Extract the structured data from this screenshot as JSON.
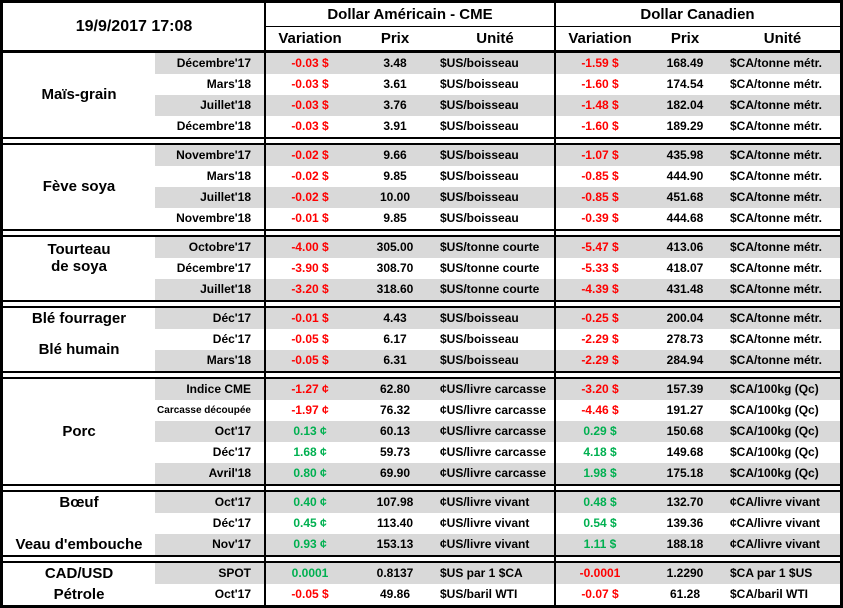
{
  "header": {
    "timestamp": "19/9/2017 17:08",
    "sections": [
      {
        "title": "Dollar Américain - CME",
        "columns": [
          "Variation",
          "Prix",
          "Unité"
        ]
      },
      {
        "title": "Dollar Canadien",
        "columns": [
          "Variation",
          "Prix",
          "Unité"
        ]
      }
    ]
  },
  "colors": {
    "negative": "#FF0000",
    "positive": "#00B050",
    "stripe": "#D9D9D9",
    "border": "#000000"
  },
  "chart_data": {
    "type": "table",
    "row_schema": [
      "month",
      "us_variation",
      "us_price",
      "us_unit",
      "ca_variation",
      "ca_price",
      "ca_unit"
    ],
    "groups": [
      {
        "labels": [
          {
            "lines": [
              "Maïs-grain"
            ],
            "row_start": 1,
            "row_end": 4
          }
        ],
        "rows": [
          [
            "Décembre'17",
            "-0.03 $",
            "3.48",
            "$US/boisseau",
            "-1.59 $",
            "168.49",
            "$CA/tonne métr."
          ],
          [
            "Mars'18",
            "-0.03 $",
            "3.61",
            "$US/boisseau",
            "-1.60 $",
            "174.54",
            "$CA/tonne métr."
          ],
          [
            "Juillet'18",
            "-0.03 $",
            "3.76",
            "$US/boisseau",
            "-1.48 $",
            "182.04",
            "$CA/tonne métr."
          ],
          [
            "Décembre'18",
            "-0.03 $",
            "3.91",
            "$US/boisseau",
            "-1.60 $",
            "189.29",
            "$CA/tonne métr."
          ]
        ]
      },
      {
        "labels": [
          {
            "lines": [
              "Fève soya"
            ],
            "row_start": 1,
            "row_end": 4
          }
        ],
        "rows": [
          [
            "Novembre'17",
            "-0.02 $",
            "9.66",
            "$US/boisseau",
            "-1.07 $",
            "435.98",
            "$CA/tonne métr."
          ],
          [
            "Mars'18",
            "-0.02 $",
            "9.85",
            "$US/boisseau",
            "-0.85 $",
            "444.90",
            "$CA/tonne métr."
          ],
          [
            "Juillet'18",
            "-0.02 $",
            "10.00",
            "$US/boisseau",
            "-0.85 $",
            "451.68",
            "$CA/tonne métr."
          ],
          [
            "Novembre'18",
            "-0.01 $",
            "9.85",
            "$US/boisseau",
            "-0.39 $",
            "444.68",
            "$CA/tonne métr."
          ]
        ]
      },
      {
        "labels": [
          {
            "lines": [
              "Tourteau",
              "de soya"
            ],
            "row_start": 1,
            "row_end": 2
          }
        ],
        "rows": [
          [
            "Octobre'17",
            "-4.00 $",
            "305.00",
            "$US/tonne courte",
            "-5.47 $",
            "413.06",
            "$CA/tonne métr."
          ],
          [
            "Décembre'17",
            "-3.90 $",
            "308.70",
            "$US/tonne courte",
            "-5.33 $",
            "418.07",
            "$CA/tonne métr."
          ],
          [
            "Juillet'18",
            "-3.20 $",
            "318.60",
            "$US/tonne courte",
            "-4.39 $",
            "431.48",
            "$CA/tonne métr."
          ]
        ]
      },
      {
        "labels": [
          {
            "lines": [
              "Blé fourrager"
            ],
            "row_start": 1,
            "row_end": 1
          },
          {
            "lines": [
              "Blé humain"
            ],
            "row_start": 2,
            "row_end": 3
          }
        ],
        "rows": [
          [
            "Déc'17",
            "-0.01 $",
            "4.43",
            "$US/boisseau",
            "-0.25 $",
            "200.04",
            "$CA/tonne métr."
          ],
          [
            "Déc'17",
            "-0.05 $",
            "6.17",
            "$US/boisseau",
            "-2.29 $",
            "278.73",
            "$CA/tonne métr."
          ],
          [
            "Mars'18",
            "-0.05 $",
            "6.31",
            "$US/boisseau",
            "-2.29 $",
            "284.94",
            "$CA/tonne métr."
          ]
        ]
      },
      {
        "labels": [
          {
            "lines": [
              "Porc"
            ],
            "row_start": 1,
            "row_end": 5
          }
        ],
        "rows": [
          [
            "Indice CME",
            "-1.27 ¢",
            "62.80",
            "¢US/livre carcasse",
            "-3.20 $",
            "157.39",
            "$CA/100kg (Qc)"
          ],
          [
            "Carcasse découpée",
            "-1.97 ¢",
            "76.32",
            "¢US/livre carcasse",
            "-4.46 $",
            "191.27",
            "$CA/100kg (Qc)"
          ],
          [
            "Oct'17",
            "0.13 ¢",
            "60.13",
            "¢US/livre carcasse",
            "0.29 $",
            "150.68",
            "$CA/100kg (Qc)"
          ],
          [
            "Déc'17",
            "1.68 ¢",
            "59.73",
            "¢US/livre carcasse",
            "4.18 $",
            "149.68",
            "$CA/100kg (Qc)"
          ],
          [
            "Avril'18",
            "0.80 ¢",
            "69.90",
            "¢US/livre carcasse",
            "1.98 $",
            "175.18",
            "$CA/100kg (Qc)"
          ]
        ]
      },
      {
        "labels": [
          {
            "lines": [
              "Bœuf"
            ],
            "row_start": 1,
            "row_end": 1
          },
          {
            "lines": [
              "Veau d'embouche"
            ],
            "row_start": 3,
            "row_end": 3
          }
        ],
        "rows": [
          [
            "Oct'17",
            "0.40 ¢",
            "107.98",
            "¢US/livre vivant",
            "0.48 $",
            "132.70",
            "¢CA/livre vivant"
          ],
          [
            "Déc'17",
            "0.45 ¢",
            "113.40",
            "¢US/livre vivant",
            "0.54 $",
            "139.36",
            "¢CA/livre vivant"
          ],
          [
            "Nov'17",
            "0.93 ¢",
            "153.13",
            "¢US/livre vivant",
            "1.11 $",
            "188.18",
            "¢CA/livre vivant"
          ]
        ]
      },
      {
        "labels": [
          {
            "lines": [
              "CAD/USD"
            ],
            "row_start": 1,
            "row_end": 1
          },
          {
            "lines": [
              "Pétrole"
            ],
            "row_start": 2,
            "row_end": 2
          }
        ],
        "rows": [
          [
            "SPOT",
            "0.0001",
            "0.8137",
            "$US par 1 $CA",
            "-0.0001",
            "1.2290",
            "$CA par 1 $US"
          ],
          [
            "Oct'17",
            "-0.05 $",
            "49.86",
            "$US/baril WTI",
            "-0.07 $",
            "61.28",
            "$CA/baril WTI"
          ]
        ]
      }
    ]
  }
}
